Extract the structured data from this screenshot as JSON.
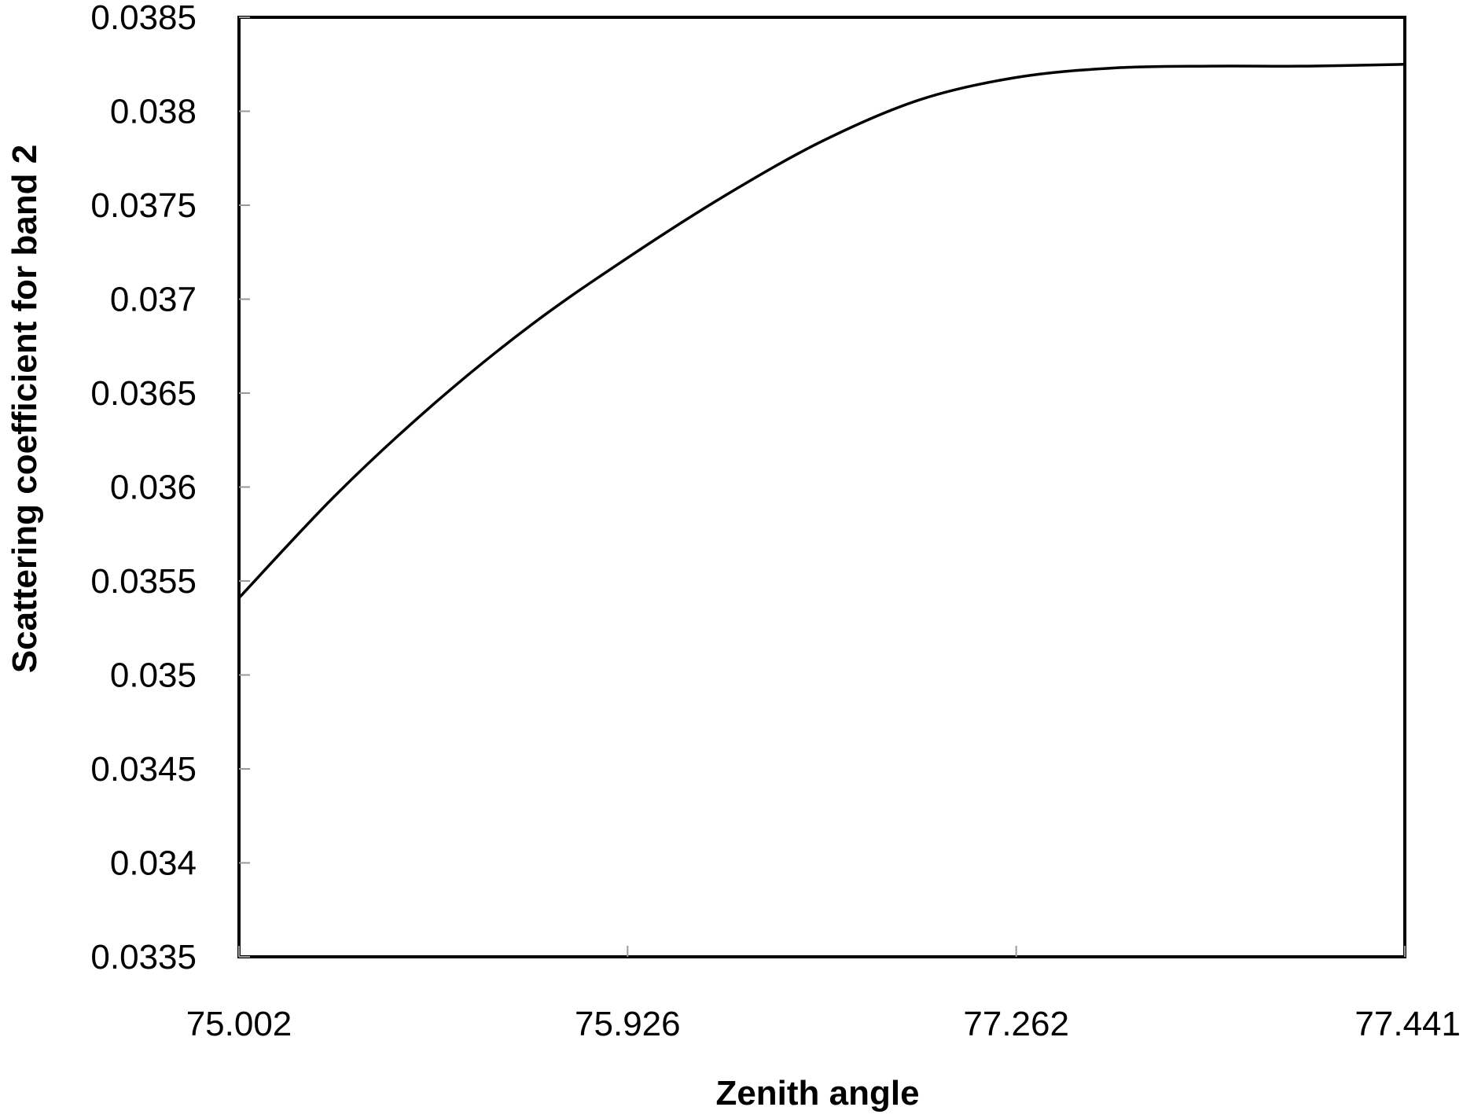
{
  "chart_data": {
    "type": "line",
    "title": "",
    "xlabel": "Zenith angle",
    "ylabel": "Scattering coefficient for band 2",
    "x_categories": [
      "75.002",
      "75.926",
      "77.262",
      "77.441"
    ],
    "ylim": [
      0.0335,
      0.0385
    ],
    "y_ticks": [
      "0.0385",
      "0.038",
      "0.0375",
      "0.037",
      "0.0365",
      "0.036",
      "0.0355",
      "0.035",
      "0.0345",
      "0.034",
      "0.0335"
    ],
    "grid": false,
    "legend": "none",
    "series": [
      {
        "x": [
          0,
          0.25,
          0.5,
          0.75,
          1.0,
          1.25,
          1.5,
          1.75,
          2.0,
          2.25,
          2.5,
          2.75,
          3.0
        ],
        "values": [
          0.03541,
          0.03596,
          0.03644,
          0.03686,
          0.03722,
          0.03755,
          0.03784,
          0.03806,
          0.03818,
          0.03823,
          0.03824,
          0.03824,
          0.03825
        ]
      }
    ]
  },
  "colors": {
    "line": "#000000",
    "frame": "#000000",
    "background": "#ffffff"
  }
}
